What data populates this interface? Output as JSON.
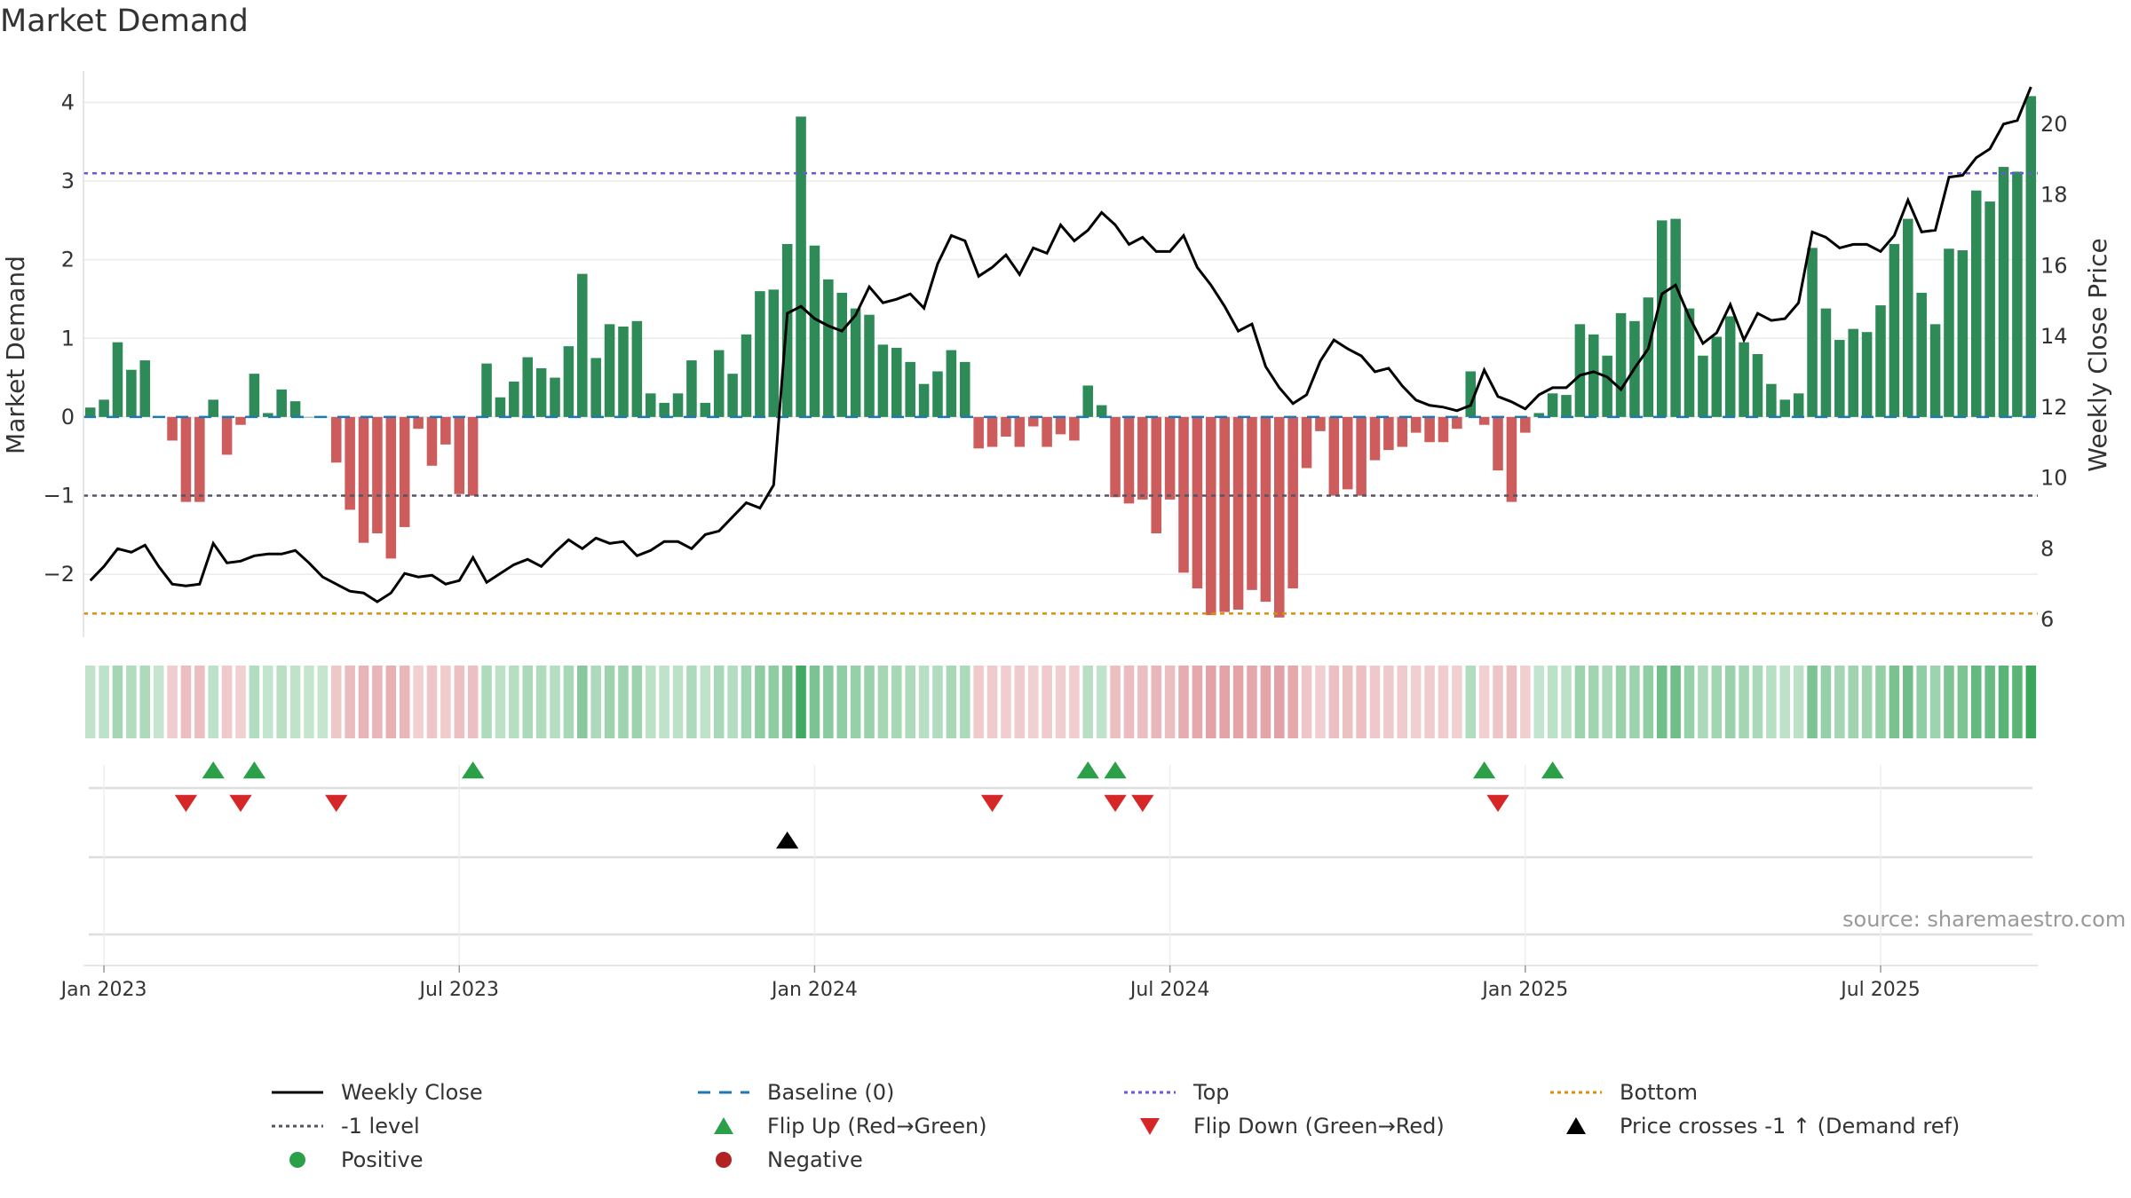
{
  "title": "Market Demand",
  "source": "source: sharemaestro.com",
  "colors": {
    "positive": "#2e8b57",
    "negative": "#cd5c5c",
    "price": "#000000",
    "baseline": "#1f77b4",
    "top": "#6a5acd",
    "bottom": "#d4920a",
    "minus1": "#555566",
    "flip_up": "#2ca048",
    "flip_down": "#d62728",
    "cross": "#000000"
  },
  "legend": [
    [
      {
        "label": "Weekly Close",
        "sym": "line-solid",
        "color": "#000000"
      },
      {
        "label": "Baseline (0)",
        "sym": "line-dash",
        "color": "#1f77b4"
      },
      {
        "label": "Top",
        "sym": "line-dot",
        "color": "#6a5acd"
      },
      {
        "label": "Bottom",
        "sym": "line-dot",
        "color": "#d4920a"
      }
    ],
    [
      {
        "label": "-1 level",
        "sym": "line-dot",
        "color": "#555566"
      },
      {
        "label": "Flip Up (Red→Green)",
        "sym": "tri-up",
        "color": "#2ca048"
      },
      {
        "label": "Flip Down (Green→Red)",
        "sym": "tri-down",
        "color": "#d62728"
      },
      {
        "label": "Price crosses -1 ↑ (Demand ref)",
        "sym": "tri-up",
        "color": "#000000"
      }
    ],
    [
      {
        "label": "Positive",
        "sym": "dot",
        "color": "#2ca048"
      },
      {
        "label": "Negative",
        "sym": "dot",
        "color": "#b22222"
      }
    ]
  ],
  "chart_data": {
    "type": "bar",
    "title": "Market Demand",
    "ylabel": "Market Demand",
    "y2label": "Weekly Close Price",
    "ylim": [
      -2.8,
      4.4
    ],
    "y2lim": [
      5.5,
      21.5
    ],
    "yticks": [
      -2,
      -1,
      0,
      1,
      2,
      3,
      4
    ],
    "yticklabels": [
      "−2",
      "−1",
      "0",
      "1",
      "2",
      "3",
      "4"
    ],
    "y2ticks": [
      6,
      8,
      10,
      12,
      14,
      16,
      18,
      20
    ],
    "xticklabels": [
      "Jan 2023",
      "Jul 2023",
      "Jan 2024",
      "Jul 2024",
      "Jan 2025",
      "Jul 2025"
    ],
    "xtick_weeks": [
      1,
      27,
      53,
      79,
      105,
      131
    ],
    "reference_lines": {
      "baseline": 0,
      "top": 3.1,
      "bottom": -2.5,
      "minus1": -1
    },
    "demand": [
      0.12,
      0.22,
      0.95,
      0.6,
      0.72,
      0.0,
      -0.3,
      -1.08,
      -1.08,
      0.22,
      -0.48,
      -0.1,
      0.55,
      0.05,
      0.35,
      0.2,
      0.0,
      0.0,
      -0.58,
      -1.18,
      -1.6,
      -1.48,
      -1.8,
      -1.4,
      -0.15,
      -0.62,
      -0.35,
      -0.98,
      -1.0,
      0.68,
      0.25,
      0.45,
      0.76,
      0.62,
      0.5,
      0.9,
      1.82,
      0.75,
      1.18,
      1.15,
      1.22,
      0.3,
      0.18,
      0.3,
      0.72,
      0.18,
      0.85,
      0.55,
      1.05,
      1.6,
      1.62,
      2.2,
      3.82,
      2.18,
      1.75,
      1.58,
      1.38,
      1.3,
      0.92,
      0.88,
      0.7,
      0.42,
      0.58,
      0.85,
      0.7,
      -0.4,
      -0.38,
      -0.25,
      -0.38,
      -0.12,
      -0.38,
      -0.22,
      -0.3,
      0.4,
      0.15,
      -1.02,
      -1.1,
      -1.05,
      -1.48,
      -1.05,
      -1.98,
      -2.18,
      -2.52,
      -2.48,
      -2.45,
      -2.2,
      -2.35,
      -2.55,
      -2.18,
      -0.65,
      -0.18,
      -1.0,
      -0.92,
      -1.0,
      -0.55,
      -0.42,
      -0.38,
      -0.2,
      -0.32,
      -0.32,
      -0.15,
      0.58,
      -0.1,
      -0.68,
      -1.08,
      -0.2,
      0.05,
      0.3,
      0.28,
      1.18,
      1.05,
      0.78,
      1.32,
      1.22,
      1.52,
      2.5,
      2.52,
      1.38,
      0.78,
      1.02,
      1.28,
      0.95,
      0.8,
      0.42,
      0.22,
      0.3,
      2.15,
      1.38,
      0.98,
      1.12,
      1.08,
      1.42,
      2.2,
      2.52,
      1.58,
      1.18,
      2.14,
      2.12,
      2.88,
      2.74,
      3.18,
      3.12,
      4.08
    ],
    "price": [
      7.1,
      7.5,
      8.0,
      7.9,
      8.1,
      7.5,
      7.0,
      6.95,
      7.0,
      8.15,
      7.6,
      7.65,
      7.8,
      7.85,
      7.85,
      7.95,
      7.6,
      7.2,
      7.0,
      6.8,
      6.75,
      6.5,
      6.75,
      7.3,
      7.2,
      7.25,
      7.0,
      7.1,
      7.75,
      7.05,
      7.3,
      7.55,
      7.7,
      7.5,
      7.9,
      8.25,
      8.0,
      8.3,
      8.15,
      8.2,
      7.8,
      7.95,
      8.2,
      8.2,
      8.0,
      8.4,
      8.5,
      8.9,
      9.3,
      9.15,
      9.8,
      14.65,
      14.85,
      14.5,
      14.3,
      14.15,
      14.6,
      15.4,
      14.95,
      15.05,
      15.2,
      14.8,
      16.05,
      16.85,
      16.7,
      15.7,
      15.95,
      16.3,
      15.75,
      16.5,
      16.35,
      17.15,
      16.7,
      17.0,
      17.5,
      17.15,
      16.6,
      16.8,
      16.4,
      16.4,
      16.85,
      15.95,
      15.45,
      14.85,
      14.15,
      14.35,
      13.15,
      12.55,
      12.1,
      12.35,
      13.3,
      13.9,
      13.65,
      13.45,
      13.0,
      13.1,
      12.6,
      12.2,
      12.05,
      12.0,
      11.9,
      12.05,
      13.05,
      12.3,
      12.15,
      11.95,
      12.35,
      12.55,
      12.55,
      12.9,
      13.0,
      12.85,
      12.5,
      13.1,
      13.65,
      15.2,
      15.45,
      14.55,
      13.8,
      14.1,
      14.9,
      13.9,
      14.65,
      14.45,
      14.5,
      14.95,
      16.95,
      16.8,
      16.5,
      16.6,
      16.6,
      16.4,
      16.85,
      17.85,
      16.95,
      17.0,
      18.5,
      18.55,
      19.05,
      19.3,
      20.0,
      20.1,
      21.05
    ],
    "strength_shading": "bar color intensity per week follows demand magnitude",
    "events": {
      "flip_up_weeks": [
        9,
        12,
        28,
        73,
        75,
        102,
        107
      ],
      "flip_down_weeks": [
        7,
        11,
        18,
        66,
        75,
        77,
        103
      ],
      "price_cross_weeks": [
        51
      ]
    }
  }
}
